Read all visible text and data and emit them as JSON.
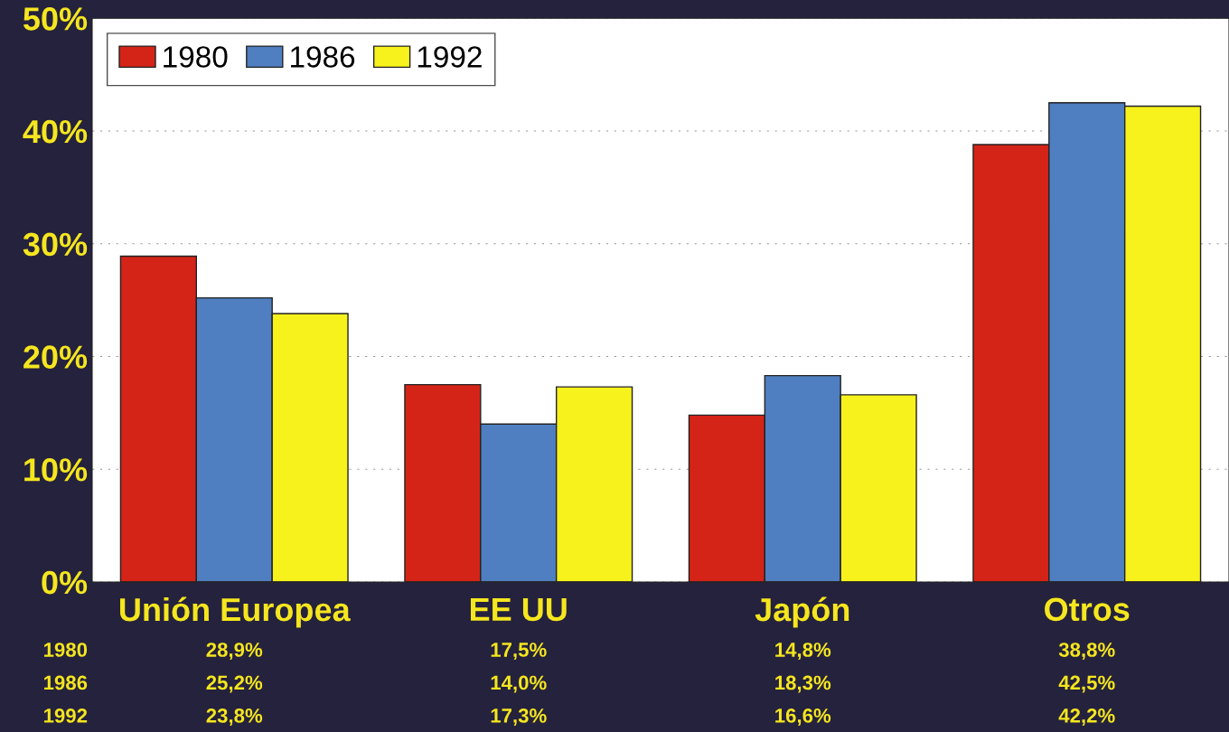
{
  "chart_data": {
    "type": "bar",
    "categories": [
      "Unión Europea",
      "EE UU",
      "Japón",
      "Otros"
    ],
    "series": [
      {
        "name": "1980",
        "color": "#d42418",
        "values": [
          28.9,
          17.5,
          14.8,
          38.8
        ],
        "value_labels": [
          "28,9%",
          "17,5%",
          "14,8%",
          "38,8%"
        ]
      },
      {
        "name": "1986",
        "color": "#4f7fc0",
        "values": [
          25.2,
          14.0,
          18.3,
          42.5
        ],
        "value_labels": [
          "25,2%",
          "14,0%",
          "18,3%",
          "42,5%"
        ]
      },
      {
        "name": "1992",
        "color": "#f7f21c",
        "values": [
          23.8,
          17.3,
          16.6,
          42.2
        ],
        "value_labels": [
          "23,8%",
          "17,3%",
          "16,6%",
          "42,2%"
        ]
      }
    ],
    "ylim": [
      0,
      50
    ],
    "yticks": [
      {
        "value": 0,
        "label": "0%"
      },
      {
        "value": 10,
        "label": "10%"
      },
      {
        "value": 20,
        "label": "20%"
      },
      {
        "value": 30,
        "label": "30%"
      },
      {
        "value": 40,
        "label": "40%"
      },
      {
        "value": 50,
        "label": "50%"
      }
    ],
    "grid": "y",
    "legend": "top left"
  }
}
